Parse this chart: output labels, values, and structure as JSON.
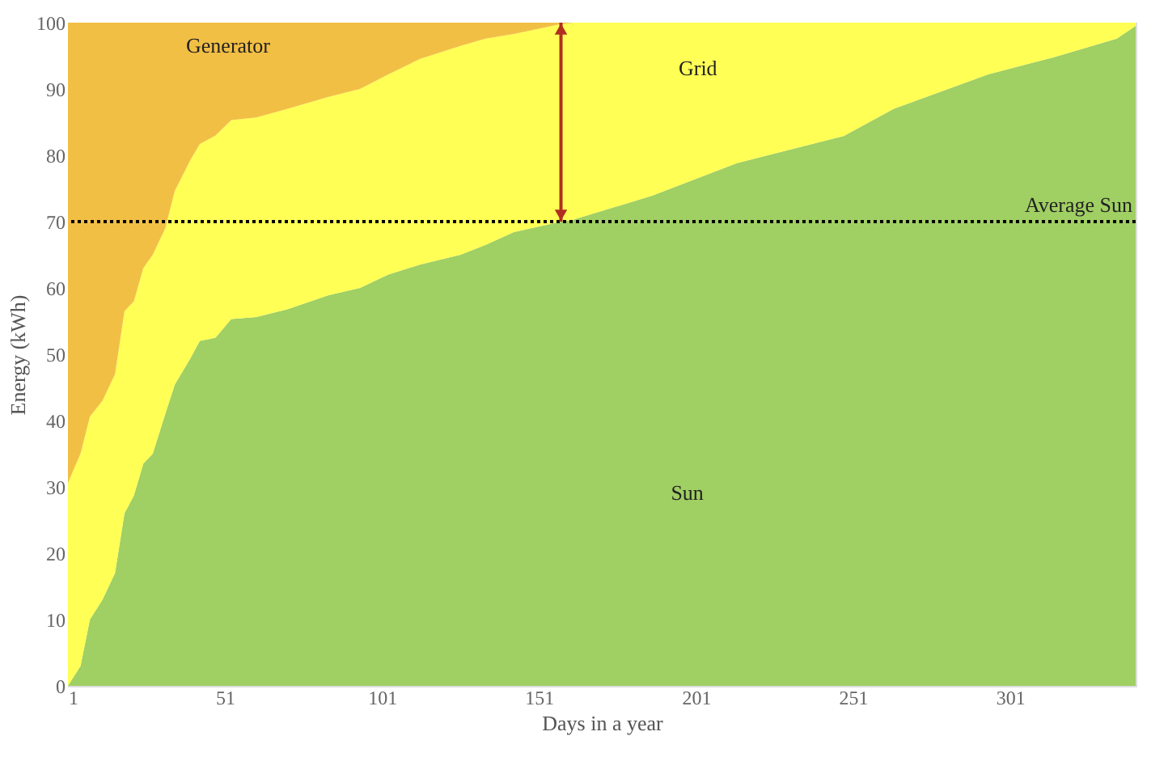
{
  "chart_data": {
    "type": "area",
    "stacked": true,
    "xlabel": "Days in a year",
    "ylabel": "Energy (kWh)",
    "x": [
      1,
      5,
      8,
      12,
      16,
      19,
      22,
      25,
      28,
      32,
      35,
      40,
      43,
      48,
      53,
      61,
      71,
      84,
      94,
      103,
      113,
      126,
      134,
      143,
      158,
      162,
      187,
      214,
      248,
      264,
      294,
      315,
      335,
      341
    ],
    "series": [
      {
        "name": "Sun",
        "color": "#a0cf63",
        "values": [
          0,
          3,
          10,
          13,
          17,
          26,
          28.7,
          33.5,
          35,
          41,
          45.4,
          49.4,
          52,
          52.5,
          55.3,
          55.6,
          56.8,
          58.9,
          60,
          62,
          63.5,
          65,
          66.5,
          68.4,
          70,
          70.3,
          73.9,
          78.8,
          82.9,
          87,
          92.2,
          94.8,
          97.6,
          99.5
        ]
      },
      {
        "name": "Grid",
        "color": "#ffff55",
        "values": [
          30.6,
          32,
          30.6,
          30,
          30,
          30.5,
          29.3,
          29.5,
          30,
          28,
          29.2,
          29.9,
          29.7,
          30.5,
          30,
          30.1,
          30.2,
          29.9,
          30,
          30.2,
          31,
          31.5,
          31.1,
          29.9,
          29.8,
          29.7,
          26.1,
          21.2,
          17.1,
          13,
          7.8,
          5.2,
          2.4,
          0.5
        ]
      },
      {
        "name": "Generator",
        "color": "#f2bf45",
        "values": [
          69.4,
          65,
          59.4,
          57,
          53,
          43.5,
          42,
          37,
          35,
          31,
          25.4,
          20.7,
          18.3,
          17,
          14.7,
          14.3,
          13,
          11.2,
          10,
          7.8,
          5.5,
          3.5,
          2.4,
          1.7,
          0.2,
          0,
          0,
          0,
          0,
          0,
          0,
          0,
          0,
          0
        ]
      }
    ],
    "xlim": [
      1,
      341
    ],
    "xticks": [
      1,
      51,
      101,
      151,
      201,
      251,
      301
    ],
    "ylim": [
      0,
      100
    ],
    "yticks": [
      0,
      10,
      20,
      30,
      40,
      50,
      60,
      70,
      80,
      90,
      100
    ],
    "ref_lines": [
      {
        "axis": "y",
        "value": 70,
        "label": "Average Sun",
        "color": "#000000",
        "line_style": "dotted"
      }
    ],
    "grid": false,
    "legend": false
  }
}
